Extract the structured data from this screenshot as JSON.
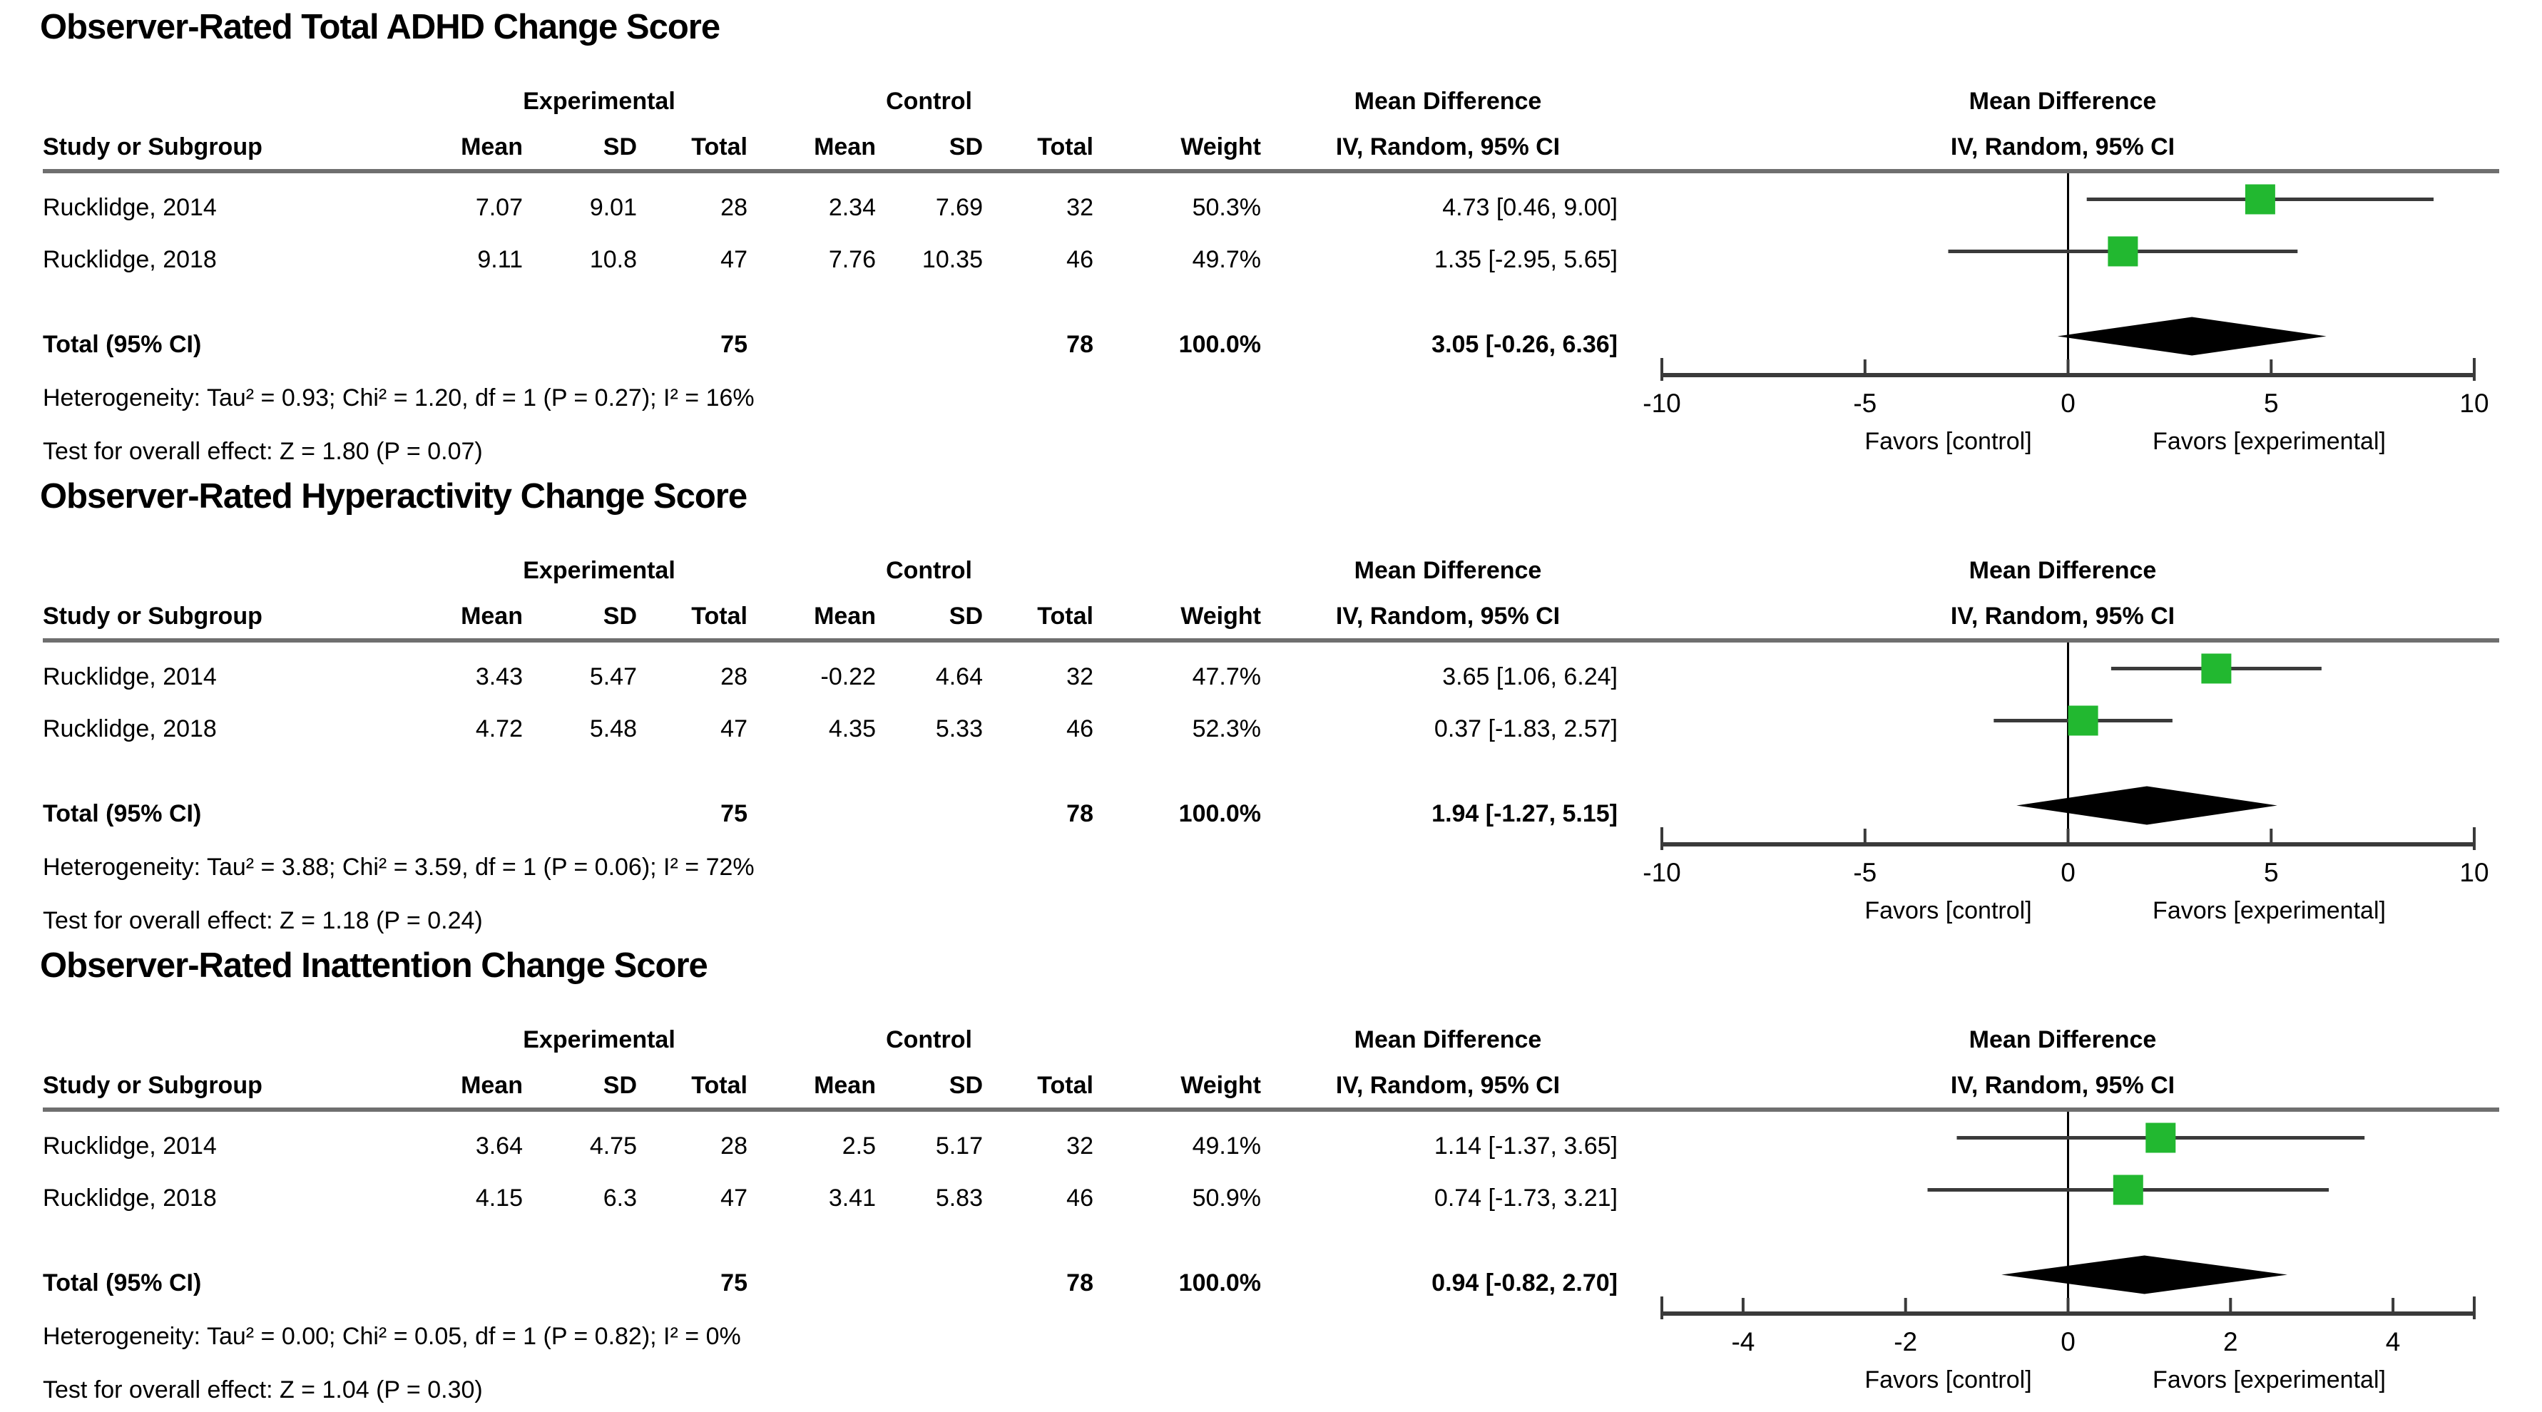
{
  "colors": {
    "square_green": "#22b830",
    "ci_line": "#3a3a3a",
    "axis_line": "#3a3a3a",
    "diamond": "#000000",
    "rule_gray": "#6f6f6f",
    "zero_line": "#000000"
  },
  "labels": {
    "experimental": "Experimental",
    "control": "Control",
    "mean_difference": "Mean Difference",
    "iv_random": "IV, Random, 95% CI",
    "study": "Study or Subgroup",
    "mean": "Mean",
    "sd": "SD",
    "total": "Total",
    "weight": "Weight",
    "favors_left": "Favors [control]",
    "favors_right": "Favors [experimental]"
  },
  "chart_data": [
    {
      "type": "forest",
      "title": "Observer-Rated Total ADHD Change Score",
      "studies": [
        {
          "label": "Rucklidge, 2014",
          "exp_mean": "7.07",
          "exp_sd": "9.01",
          "exp_total": "28",
          "ctrl_mean": "2.34",
          "ctrl_sd": "7.69",
          "ctrl_total": "32",
          "weight": "50.3%",
          "ci_text": "4.73 [0.46, 9.00]",
          "md": 4.73,
          "lo": 0.46,
          "hi": 9.0
        },
        {
          "label": "Rucklidge, 2018",
          "exp_mean": "9.11",
          "exp_sd": "10.8",
          "exp_total": "47",
          "ctrl_mean": "7.76",
          "ctrl_sd": "10.35",
          "ctrl_total": "46",
          "weight": "49.7%",
          "ci_text": "1.35 [-2.95, 5.65]",
          "md": 1.35,
          "lo": -2.95,
          "hi": 5.65
        }
      ],
      "total": {
        "label": "Total (95% CI)",
        "exp_total": "75",
        "ctrl_total": "78",
        "weight": "100.0%",
        "ci_text": "3.05 [-0.26, 6.36]",
        "md": 3.05,
        "lo": -0.26,
        "hi": 6.36
      },
      "heterogeneity": "Heterogeneity: Tau² = 0.93; Chi² = 1.20, df = 1 (P = 0.27); I² = 16%",
      "overall_effect": "Test for overall effect: Z = 1.80 (P = 0.07)",
      "axis": {
        "line_min": -10,
        "line_max": 10,
        "ticks": [
          -10,
          -5,
          0,
          5,
          10
        ],
        "tick_labels": [
          "-10",
          "-5",
          "0",
          "5",
          "10"
        ]
      }
    },
    {
      "type": "forest",
      "title": "Observer-Rated Hyperactivity Change Score",
      "studies": [
        {
          "label": "Rucklidge, 2014",
          "exp_mean": "3.43",
          "exp_sd": "5.47",
          "exp_total": "28",
          "ctrl_mean": "-0.22",
          "ctrl_sd": "4.64",
          "ctrl_total": "32",
          "weight": "47.7%",
          "ci_text": "3.65 [1.06, 6.24]",
          "md": 3.65,
          "lo": 1.06,
          "hi": 6.24
        },
        {
          "label": "Rucklidge, 2018",
          "exp_mean": "4.72",
          "exp_sd": "5.48",
          "exp_total": "47",
          "ctrl_mean": "4.35",
          "ctrl_sd": "5.33",
          "ctrl_total": "46",
          "weight": "52.3%",
          "ci_text": "0.37 [-1.83, 2.57]",
          "md": 0.37,
          "lo": -1.83,
          "hi": 2.57
        }
      ],
      "total": {
        "label": "Total (95% CI)",
        "exp_total": "75",
        "ctrl_total": "78",
        "weight": "100.0%",
        "ci_text": "1.94 [-1.27, 5.15]",
        "md": 1.94,
        "lo": -1.27,
        "hi": 5.15
      },
      "heterogeneity": "Heterogeneity: Tau² = 3.88; Chi² = 3.59, df = 1 (P = 0.06); I² = 72%",
      "overall_effect": "Test for overall effect: Z = 1.18 (P = 0.24)",
      "axis": {
        "line_min": -10,
        "line_max": 10,
        "ticks": [
          -10,
          -5,
          0,
          5,
          10
        ],
        "tick_labels": [
          "-10",
          "-5",
          "0",
          "5",
          "10"
        ]
      }
    },
    {
      "type": "forest",
      "title": "Observer-Rated Inattention Change Score",
      "studies": [
        {
          "label": "Rucklidge, 2014",
          "exp_mean": "3.64",
          "exp_sd": "4.75",
          "exp_total": "28",
          "ctrl_mean": "2.5",
          "ctrl_sd": "5.17",
          "ctrl_total": "32",
          "weight": "49.1%",
          "ci_text": "1.14 [-1.37, 3.65]",
          "md": 1.14,
          "lo": -1.37,
          "hi": 3.65
        },
        {
          "label": "Rucklidge, 2018",
          "exp_mean": "4.15",
          "exp_sd": "6.3",
          "exp_total": "47",
          "ctrl_mean": "3.41",
          "ctrl_sd": "5.83",
          "ctrl_total": "46",
          "weight": "50.9%",
          "ci_text": "0.74 [-1.73, 3.21]",
          "md": 0.74,
          "lo": -1.73,
          "hi": 3.21
        }
      ],
      "total": {
        "label": "Total (95% CI)",
        "exp_total": "75",
        "ctrl_total": "78",
        "weight": "100.0%",
        "ci_text": "0.94 [-0.82, 2.70]",
        "md": 0.94,
        "lo": -0.82,
        "hi": 2.7
      },
      "heterogeneity": "Heterogeneity: Tau² = 0.00; Chi² = 0.05, df = 1 (P = 0.82); I² = 0%",
      "overall_effect": "Test for overall effect: Z = 1.04 (P = 0.30)",
      "axis": {
        "line_min": -5,
        "line_max": 5,
        "ticks": [
          -4,
          -2,
          0,
          2,
          4
        ],
        "tick_labels": [
          "-4",
          "-2",
          "0",
          "2",
          "4"
        ]
      }
    }
  ]
}
